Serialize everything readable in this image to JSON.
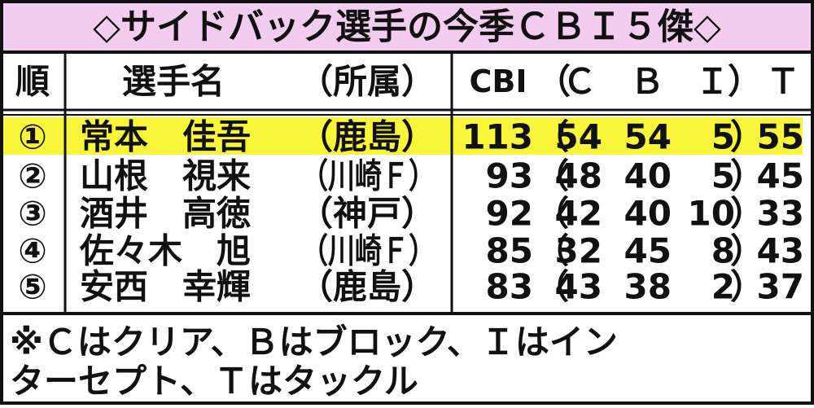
{
  "title": "◇サイドバック選手の今季ＣＢＩ５傑◇",
  "header": {
    "rank": "順",
    "player": "選手名",
    "team": "（所属）",
    "cbi": "CBI",
    "open": "（",
    "c": "Ｃ",
    "b": "Ｂ",
    "i": "Ｉ",
    "close": "）",
    "t": "Ｔ"
  },
  "table": {
    "open": "（",
    "close": "）",
    "rows": [
      {
        "rank": "①",
        "name": "常本　佳吾",
        "team": "（鹿島）",
        "cbi": 113,
        "c": 54,
        "b": 54,
        "i": 5,
        "t": 55
      },
      {
        "rank": "②",
        "name": "山根　視来",
        "team": "（川崎Ｆ）",
        "cbi": 93,
        "c": 48,
        "b": 40,
        "i": 5,
        "t": 45
      },
      {
        "rank": "③",
        "name": "酒井　高徳",
        "team": "（神戸）",
        "cbi": 92,
        "c": 42,
        "b": 40,
        "i": 10,
        "t": 33
      },
      {
        "rank": "④",
        "name": "佐々木　旭",
        "team": "（川崎Ｆ）",
        "cbi": 85,
        "c": 32,
        "b": 45,
        "i": 8,
        "t": 43
      },
      {
        "rank": "⑤",
        "name": "安西　幸輝",
        "team": "（鹿島）",
        "cbi": 83,
        "c": 43,
        "b": 38,
        "i": 2,
        "t": 37
      }
    ]
  },
  "note": [
    "※Ｃはクリア、Ｂはブロック、Ｉはイン",
    "ターセプト、Ｔはタックル"
  ]
}
